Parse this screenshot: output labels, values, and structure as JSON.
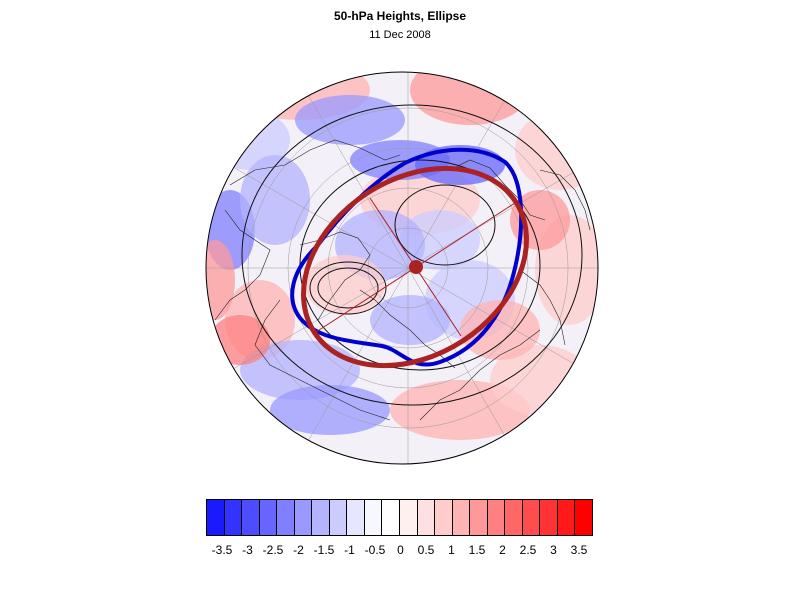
{
  "title": "50-hPa Heights, Ellipse",
  "subtitle": "11 Dec 2008",
  "colorbar": {
    "colors": [
      "#1a1aff",
      "#3333ff",
      "#4d4dff",
      "#6666ff",
      "#8080ff",
      "#9999ff",
      "#b3b3ff",
      "#ccccff",
      "#e6e6ff",
      "#f7f7ff",
      "#ffffff",
      "#fff0f0",
      "#ffe0e0",
      "#ffcccc",
      "#ffb3b3",
      "#ff9999",
      "#ff8080",
      "#ff6666",
      "#ff4d4d",
      "#ff3333",
      "#ff1a1a",
      "#ff0000"
    ],
    "labels": [
      "-3.5",
      "-3",
      "-2.5",
      "-2",
      "-1.5",
      "-1",
      "-0.5",
      "0",
      "0.5",
      "1",
      "1.5",
      "2",
      "2.5",
      "3",
      "3.5"
    ]
  },
  "map": {
    "projection": "north polar stereographic",
    "anomaly_field": "height anomaly (shaded)",
    "blue_contour_color": "#0000cc",
    "ellipse_color": "#aa2222",
    "axes_color": "#aa2222",
    "contour_color": "#000000"
  }
}
